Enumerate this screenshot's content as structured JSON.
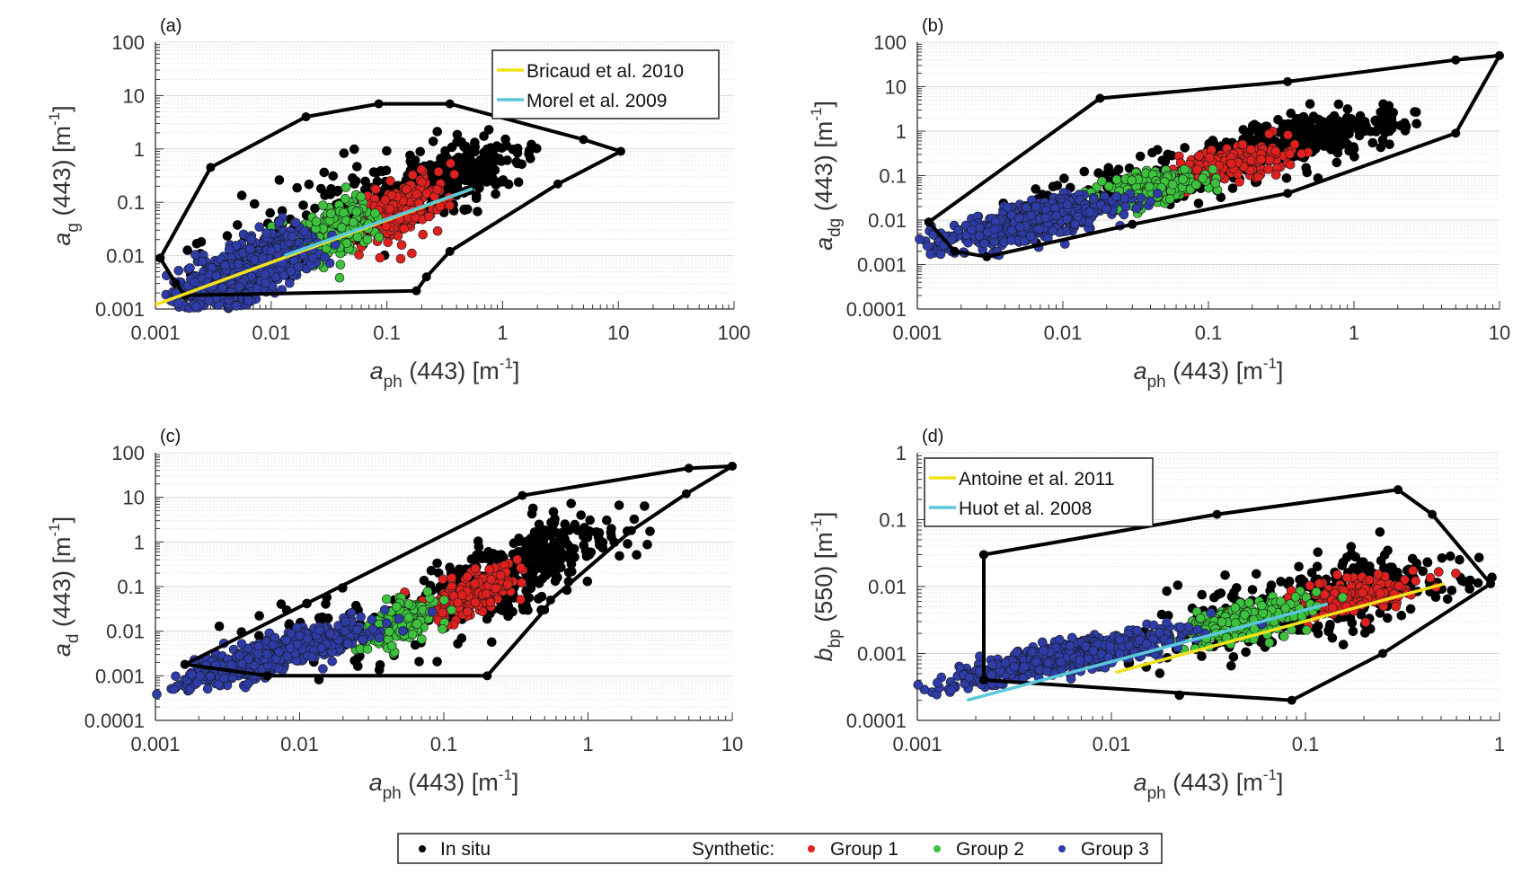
{
  "chart_data": [
    {
      "type": "scatter",
      "panel": "(a)",
      "xscale": "log",
      "yscale": "log",
      "xlim": [
        0.001,
        100
      ],
      "ylim": [
        0.001,
        100
      ],
      "xticks": [
        "0.001",
        "0.01",
        "0.1",
        "1",
        "10",
        "100"
      ],
      "yticks": [
        "0.001",
        "0.01",
        "0.1",
        "1",
        "10",
        "100"
      ],
      "xlabel": {
        "var": "a",
        "sub": "ph",
        "rest": " (443) [m",
        "sup": "-1",
        "end": "]"
      },
      "ylabel": {
        "var": "a",
        "sub": "g",
        "rest": " (443) [m",
        "sup": "-1",
        "end": "]"
      },
      "hull": [
        [
          0.0011,
          0.009
        ],
        [
          0.003,
          0.45
        ],
        [
          0.02,
          4
        ],
        [
          0.085,
          7
        ],
        [
          0.35,
          7
        ],
        [
          5,
          1.5
        ],
        [
          10.5,
          0.9
        ],
        [
          3,
          0.22
        ],
        [
          0.35,
          0.012
        ],
        [
          0.22,
          0.004
        ],
        [
          0.18,
          0.0022
        ],
        [
          0.0018,
          0.0018
        ],
        [
          0.0015,
          0.003
        ],
        [
          0.0011,
          0.009
        ]
      ],
      "clusters": [
        {
          "group": "In situ",
          "center": [
            0.3,
            0.25
          ],
          "spread": [
            0.35,
            0.35
          ],
          "rho": 0.7,
          "n": 350
        },
        {
          "group": "In situ",
          "center": [
            0.05,
            0.1
          ],
          "spread": [
            0.6,
            0.55
          ],
          "rho": 0.6,
          "n": 120
        },
        {
          "group": "Group 1",
          "center": [
            0.13,
            0.07
          ],
          "spread": [
            0.2,
            0.35
          ],
          "rho": 0.5,
          "n": 180
        },
        {
          "group": "Group 2",
          "center": [
            0.035,
            0.03
          ],
          "spread": [
            0.18,
            0.3
          ],
          "rho": 0.4,
          "n": 220
        },
        {
          "group": "Group 3",
          "center": [
            0.006,
            0.005
          ],
          "spread": [
            0.3,
            0.38
          ],
          "rho": 0.65,
          "n": 650
        }
      ],
      "lines": [
        {
          "name": "Bricaud et al. 2010",
          "from": [
            0.001,
            0.0012
          ],
          "to": [
            0.55,
            0.18
          ]
        },
        {
          "name": "Morel et al. 2009",
          "from": [
            0.013,
            0.01
          ],
          "to": [
            0.55,
            0.18
          ]
        }
      ],
      "legend": "top-right"
    },
    {
      "type": "scatter",
      "panel": "(b)",
      "xscale": "log",
      "yscale": "log",
      "xlim": [
        0.001,
        10
      ],
      "ylim": [
        0.0001,
        100
      ],
      "xticks": [
        "0.001",
        "0.01",
        "0.1",
        "1",
        "10"
      ],
      "yticks": [
        "0.0001",
        "0.001",
        "0.01",
        "0.1",
        "1",
        "10",
        "100"
      ],
      "xlabel": {
        "var": "a",
        "sub": "ph",
        "rest": " (443) [m",
        "sup": "-1",
        "end": "]"
      },
      "ylabel": {
        "var": "a",
        "sub": "dg",
        "rest": " (443) [m",
        "sup": "-1",
        "end": "]"
      },
      "hull": [
        [
          0.0012,
          0.009
        ],
        [
          0.018,
          5.5
        ],
        [
          0.35,
          13
        ],
        [
          5,
          40
        ],
        [
          10,
          50
        ],
        [
          5,
          0.9
        ],
        [
          0.35,
          0.04
        ],
        [
          0.03,
          0.008
        ],
        [
          0.003,
          0.0015
        ],
        [
          0.0018,
          0.002
        ],
        [
          0.0012,
          0.009
        ]
      ],
      "clusters": [
        {
          "group": "In situ",
          "center": [
            0.5,
            0.7
          ],
          "spread": [
            0.3,
            0.3
          ],
          "rho": 0.6,
          "n": 350
        },
        {
          "group": "In situ",
          "center": [
            0.06,
            0.1
          ],
          "spread": [
            0.6,
            0.5
          ],
          "rho": 0.7,
          "n": 150
        },
        {
          "group": "Group 1",
          "center": [
            0.15,
            0.2
          ],
          "spread": [
            0.2,
            0.2
          ],
          "rho": 0.5,
          "n": 180
        },
        {
          "group": "Group 2",
          "center": [
            0.04,
            0.05
          ],
          "spread": [
            0.18,
            0.2
          ],
          "rho": 0.5,
          "n": 220
        },
        {
          "group": "Group 3",
          "center": [
            0.006,
            0.009
          ],
          "spread": [
            0.3,
            0.3
          ],
          "rho": 0.75,
          "n": 650
        }
      ],
      "lines": [],
      "legend": "none"
    },
    {
      "type": "scatter",
      "panel": "(c)",
      "xscale": "log",
      "yscale": "log",
      "xlim": [
        0.001,
        10
      ],
      "ylim": [
        0.0001,
        100
      ],
      "xticks": [
        "0.001",
        "0.01",
        "0.1",
        "1",
        "10"
      ],
      "yticks": [
        "0.0001",
        "0.001",
        "0.01",
        "0.1",
        "1",
        "10",
        "100"
      ],
      "xlabel": {
        "var": "a",
        "sub": "ph",
        "rest": " (443) [m",
        "sup": "-1",
        "end": "]"
      },
      "ylabel": {
        "var": "a",
        "sub": "d",
        "rest": " (443) [m",
        "sup": "-1",
        "end": "]"
      },
      "hull": [
        [
          0.0016,
          0.0018
        ],
        [
          0.35,
          11
        ],
        [
          5,
          45
        ],
        [
          10,
          50
        ],
        [
          4.8,
          12
        ],
        [
          2,
          1.8
        ],
        [
          0.55,
          0.05
        ],
        [
          0.5,
          0.03
        ],
        [
          0.2,
          0.001
        ],
        [
          0.006,
          0.001
        ],
        [
          0.0016,
          0.0018
        ]
      ],
      "clusters": [
        {
          "group": "In situ",
          "center": [
            0.35,
            0.3
          ],
          "spread": [
            0.3,
            0.5
          ],
          "rho": 0.6,
          "n": 300
        },
        {
          "group": "In situ",
          "center": [
            0.05,
            0.02
          ],
          "spread": [
            0.6,
            0.6
          ],
          "rho": 0.6,
          "n": 150
        },
        {
          "group": "Group 1",
          "center": [
            0.15,
            0.07
          ],
          "spread": [
            0.18,
            0.3
          ],
          "rho": 0.6,
          "n": 180
        },
        {
          "group": "Group 2",
          "center": [
            0.05,
            0.015
          ],
          "spread": [
            0.13,
            0.25
          ],
          "rho": 0.5,
          "n": 220
        },
        {
          "group": "Group 3",
          "center": [
            0.007,
            0.003
          ],
          "spread": [
            0.32,
            0.35
          ],
          "rho": 0.85,
          "n": 700
        }
      ],
      "lines": [],
      "legend": "none"
    },
    {
      "type": "scatter",
      "panel": "(d)",
      "xscale": "log",
      "yscale": "log",
      "xlim": [
        0.001,
        1
      ],
      "ylim": [
        0.0001,
        1
      ],
      "xticks": [
        "0.001",
        "0.01",
        "0.1",
        "1"
      ],
      "yticks": [
        "0.0001",
        "0.001",
        "0.01",
        "0.1",
        "1"
      ],
      "xlabel": {
        "var": "a",
        "sub": "ph",
        "rest": " (443) [m",
        "sup": "-1",
        "end": "]"
      },
      "ylabel": {
        "var": "b",
        "sub": "bp",
        "rest": " (550) [m",
        "sup": "-1",
        "end": "]"
      },
      "hull": [
        [
          0.0022,
          0.03
        ],
        [
          0.035,
          0.12
        ],
        [
          0.3,
          0.28
        ],
        [
          0.45,
          0.12
        ],
        [
          0.9,
          0.011
        ],
        [
          0.25,
          0.001
        ],
        [
          0.085,
          0.0002
        ],
        [
          0.0022,
          0.0004
        ],
        [
          0.0022,
          0.03
        ]
      ],
      "clusters": [
        {
          "group": "In situ",
          "center": [
            0.12,
            0.006
          ],
          "spread": [
            0.4,
            0.4
          ],
          "rho": 0.7,
          "n": 380
        },
        {
          "group": "Group 1",
          "center": [
            0.17,
            0.007
          ],
          "spread": [
            0.18,
            0.15
          ],
          "rho": 0.5,
          "n": 180
        },
        {
          "group": "Group 2",
          "center": [
            0.05,
            0.003
          ],
          "spread": [
            0.16,
            0.18
          ],
          "rho": 0.5,
          "n": 220
        },
        {
          "group": "Group 3",
          "center": [
            0.006,
            0.0009
          ],
          "spread": [
            0.3,
            0.2
          ],
          "rho": 0.85,
          "n": 650
        }
      ],
      "lines": [
        {
          "name": "Antoine et al. 2011",
          "from": [
            0.0105,
            0.00052
          ],
          "to": [
            0.52,
            0.011
          ]
        },
        {
          "name": "Huot et al. 2008",
          "from": [
            0.0018,
            0.0002
          ],
          "to": [
            0.13,
            0.0055
          ]
        }
      ],
      "legend": "top-left"
    }
  ],
  "legend": {
    "in_situ": "In situ",
    "synthetic": "Synthetic:",
    "groups": [
      "Group 1",
      "Group 2",
      "Group 3"
    ]
  },
  "colors": {
    "In situ": "#000000",
    "Group 1": "#e0201e",
    "Group 2": "#3cc23c",
    "Group 3": "#2e3ca8",
    "line1": "#f2e21a",
    "line2": "#5bc8dc"
  }
}
